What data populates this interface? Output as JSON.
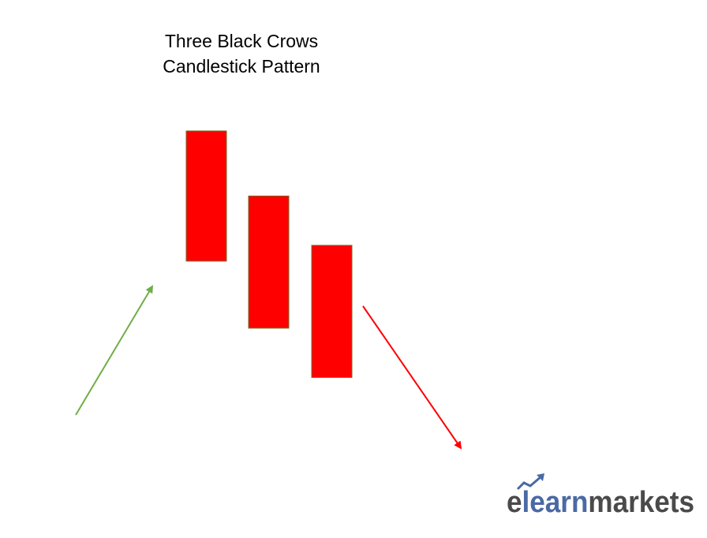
{
  "title": {
    "line1": "Three Black Crows",
    "line2": "Candlestick Pattern"
  },
  "diagram": {
    "pattern": "Three Black Crows",
    "prior_trend": "up",
    "following_trend": "down",
    "candles": [
      {
        "name": "candle-1",
        "type": "bearish",
        "open": 10.0,
        "close": 6.7
      },
      {
        "name": "candle-2",
        "type": "bearish",
        "open": 8.35,
        "close": 5.0
      },
      {
        "name": "candle-3",
        "type": "bearish",
        "open": 7.1,
        "close": 3.75
      }
    ]
  },
  "colors": {
    "candle_fill": "#ff0000",
    "candle_border": "#7a6a2a",
    "uptrend_arrow": "#70ad47",
    "downtrend_arrow": "#ff0000",
    "logo_e_part": "#4a4a4a",
    "logo_learn_part": "#4a6aa5",
    "logo_markets_part": "#4a4a4a"
  },
  "logo": {
    "part1": "e",
    "part2": "learn",
    "part3": "markets"
  }
}
